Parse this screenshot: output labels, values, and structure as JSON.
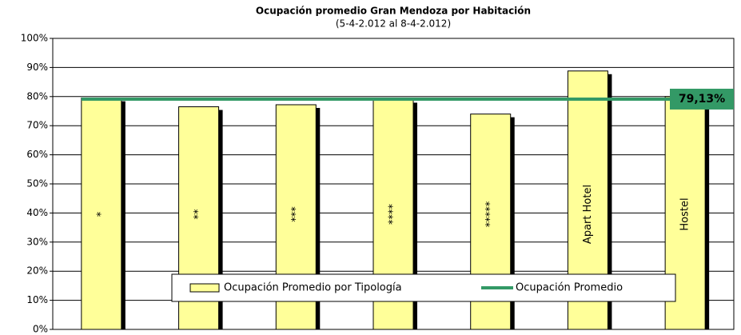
{
  "chart_data": {
    "type": "bar",
    "title": "Ocupación promedio Gran Mendoza por Habitación",
    "subtitle": "(5-4-2.012 al 8-4-2.012)",
    "categories": [
      "*",
      "**",
      "***",
      "****",
      "*****",
      "Apart Hotel",
      "Hostel"
    ],
    "series": [
      {
        "name": "Ocupación Promedio por Tipología",
        "color": "#ffff99",
        "values": [
          79.5,
          76.5,
          77.2,
          79.0,
          74.0,
          88.8,
          80.0
        ]
      }
    ],
    "average": {
      "name": "Ocupación Promedio",
      "value": 79.13,
      "label": "79,13%",
      "color": "#339966"
    },
    "ylim": [
      0,
      100
    ],
    "yticks": [
      {
        "value": 0,
        "label": "0%"
      },
      {
        "value": 10,
        "label": "10%"
      },
      {
        "value": 20,
        "label": "20%"
      },
      {
        "value": 30,
        "label": "30%"
      },
      {
        "value": 40,
        "label": "40%"
      },
      {
        "value": 50,
        "label": "50%"
      },
      {
        "value": 60,
        "label": "60%"
      },
      {
        "value": 70,
        "label": "70%"
      },
      {
        "value": 80,
        "label": "80%"
      },
      {
        "value": 90,
        "label": "90%"
      },
      {
        "value": 100,
        "label": "100%"
      }
    ],
    "grid": true
  }
}
